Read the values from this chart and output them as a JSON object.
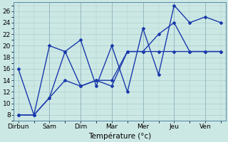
{
  "bg_color": "#cce8e4",
  "grid_color": "#aacccc",
  "line_color": "#1a3aab",
  "xlabel": "Température (°c)",
  "xlabel_fontsize": 7.5,
  "tick_label_fontsize": 6.5,
  "yticks": [
    8,
    10,
    12,
    14,
    16,
    18,
    20,
    22,
    24,
    26
  ],
  "ylim": [
    7,
    27.5
  ],
  "xlim": [
    -0.3,
    13.3
  ],
  "day_tick_positions": [
    0,
    2,
    4,
    6,
    8,
    10,
    12
  ],
  "day_labels": [
    "Dirbun",
    "Sam",
    "Dim",
    "Mar",
    "Mer",
    "Jeu",
    "Ven"
  ],
  "series1_x": [
    0,
    1,
    2,
    3,
    4,
    5,
    6,
    7,
    8,
    9,
    10,
    11,
    12,
    13
  ],
  "series1_y": [
    16,
    8,
    20,
    19,
    21,
    13,
    20,
    12,
    23,
    15,
    27,
    24,
    25,
    24
  ],
  "series2_x": [
    0,
    1,
    2,
    3,
    4,
    5,
    6,
    7,
    8,
    9,
    10,
    11,
    12,
    13
  ],
  "series2_y": [
    8,
    8,
    11,
    19,
    13,
    14,
    13,
    19,
    19,
    22,
    24,
    19,
    19,
    19
  ],
  "series3_x": [
    0,
    1,
    2,
    3,
    4,
    5,
    6,
    7,
    8,
    9,
    10,
    11,
    12,
    13
  ],
  "series3_y": [
    8,
    8,
    11,
    14,
    13,
    14,
    14,
    19,
    19,
    19,
    19,
    19,
    19,
    19
  ],
  "vline_positions": [
    2,
    4,
    6,
    8,
    10,
    12
  ],
  "marker_style": "D",
  "marker_size": 2.0,
  "line_width": 1.0
}
